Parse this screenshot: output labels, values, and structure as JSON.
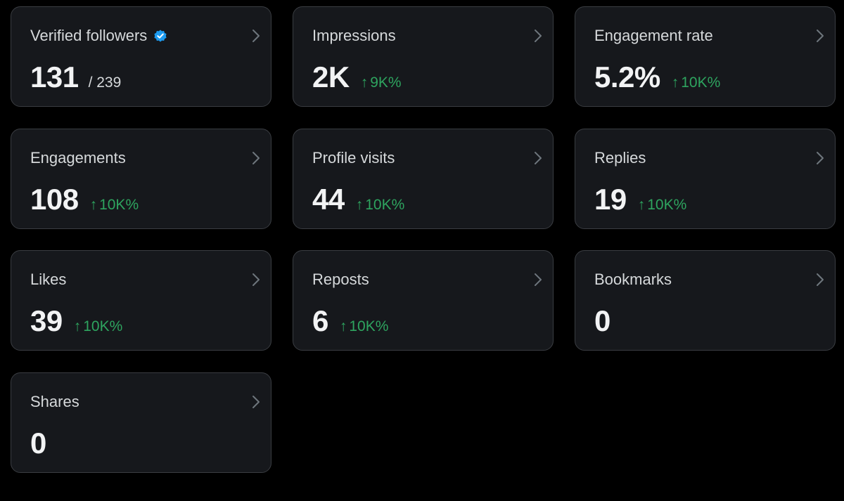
{
  "colors": {
    "background": "#000000",
    "card": "#16181c",
    "border": "#3a3d42",
    "positive": "#2ea45f",
    "verified": "#1d9bf0"
  },
  "cards": [
    {
      "title": "Verified followers",
      "value": "131",
      "suffix": "/ 239",
      "icon": "verified-badge-icon"
    },
    {
      "title": "Impressions",
      "value": "2K",
      "arrow": "↑",
      "delta": "9K%"
    },
    {
      "title": "Engagement rate",
      "value": "5.2%",
      "arrow": "↑",
      "delta": "10K%"
    },
    {
      "title": "Engagements",
      "value": "108",
      "arrow": "↑",
      "delta": "10K%"
    },
    {
      "title": "Profile visits",
      "value": "44",
      "arrow": "↑",
      "delta": "10K%"
    },
    {
      "title": "Replies",
      "value": "19",
      "arrow": "↑",
      "delta": "10K%"
    },
    {
      "title": "Likes",
      "value": "39",
      "arrow": "↑",
      "delta": "10K%"
    },
    {
      "title": "Reposts",
      "value": "6",
      "arrow": "↑",
      "delta": "10K%"
    },
    {
      "title": "Bookmarks",
      "value": "0"
    },
    {
      "title": "Shares",
      "value": "0"
    }
  ]
}
